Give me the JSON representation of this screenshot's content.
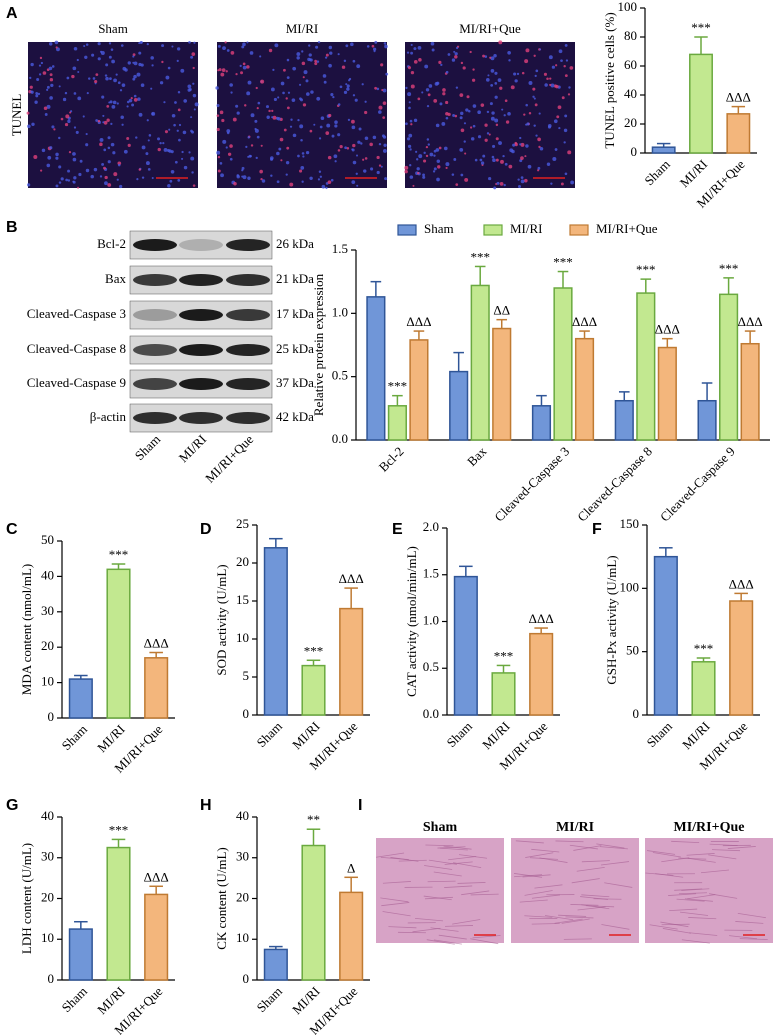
{
  "panel_labels": [
    "A",
    "B",
    "C",
    "D",
    "E",
    "F",
    "G",
    "H",
    "I"
  ],
  "tunel": {
    "row_label": "TUNEL",
    "groups": [
      "Sham",
      "MI/RI",
      "MI/RI+Que"
    ]
  },
  "western_blot": {
    "proteins": [
      "Bcl-2",
      "Bax",
      "Cleaved-Caspase 3",
      "Cleaved-Caspase 8",
      "Cleaved-Caspase 9",
      "β-actin"
    ],
    "sizes": [
      "26 kDa",
      "21 kDa",
      "17 kDa",
      "25 kDa",
      "37 kDa",
      "42 kDa"
    ],
    "groups": [
      "Sham",
      "MI/RI",
      "MI/RI+Que"
    ]
  },
  "he_stain": {
    "groups": [
      "Sham",
      "MI/RI",
      "MI/RI+Que"
    ]
  },
  "chart_data": [
    {
      "type": "bar",
      "ylabel": "TUNEL positive cells (%)",
      "categories": [
        "Sham",
        "MI/RI",
        "MI/RI+Que"
      ],
      "values": [
        4,
        68,
        27
      ],
      "errors": [
        2.5,
        12,
        5
      ],
      "annotations": [
        null,
        "***",
        "ΔΔΔ"
      ],
      "colors": [
        "#7096d8",
        "#c2e890",
        "#f3b67c"
      ],
      "edge_colors": [
        "#2f5597",
        "#6aa93f",
        "#bf7a32"
      ],
      "ylim": [
        0,
        100
      ],
      "yticks": [
        0,
        20,
        40,
        60,
        80,
        100
      ]
    },
    {
      "type": "grouped_bar",
      "ylabel": "Relative protein expression",
      "categories": [
        "Bcl-2",
        "Bax",
        "Cleaved-Caspase 3",
        "Cleaved-Caspase 8",
        "Cleaved-Caspase 9"
      ],
      "series": [
        {
          "name": "Sham",
          "color": "#7096d8",
          "edge_color": "#2f5597",
          "values": [
            1.13,
            0.54,
            0.27,
            0.31,
            0.31
          ],
          "errors": [
            0.12,
            0.15,
            0.08,
            0.07,
            0.14
          ],
          "annotations": [
            null,
            null,
            null,
            null,
            null
          ]
        },
        {
          "name": "MI/RI",
          "color": "#c2e890",
          "edge_color": "#6aa93f",
          "values": [
            0.27,
            1.22,
            1.2,
            1.16,
            1.15
          ],
          "errors": [
            0.08,
            0.15,
            0.13,
            0.11,
            0.13
          ],
          "annotations": [
            "***",
            "***",
            "***",
            "***",
            "***"
          ]
        },
        {
          "name": "MI/RI+Que",
          "color": "#f3b67c",
          "edge_color": "#bf7a32",
          "values": [
            0.79,
            0.88,
            0.8,
            0.73,
            0.76
          ],
          "errors": [
            0.07,
            0.07,
            0.06,
            0.07,
            0.1
          ],
          "annotations": [
            "ΔΔΔ",
            "ΔΔ",
            "ΔΔΔ",
            "ΔΔΔ",
            "ΔΔΔ"
          ]
        }
      ],
      "legend": "top",
      "ylim": [
        0,
        1.5
      ],
      "yticks": [
        {
          "value": 0,
          "label": "0.0"
        },
        0.5,
        {
          "value": 1,
          "label": "1.0"
        },
        1.5
      ]
    },
    {
      "type": "bar",
      "ylabel": "MDA content (nmol/mL)",
      "categories": [
        "Sham",
        "MI/RI",
        "MI/RI+Que"
      ],
      "values": [
        11,
        42,
        17
      ],
      "errors": [
        1,
        1.5,
        1.5
      ],
      "annotations": [
        null,
        "***",
        "ΔΔΔ"
      ],
      "colors": [
        "#7096d8",
        "#c2e890",
        "#f3b67c"
      ],
      "edge_colors": [
        "#2f5597",
        "#6aa93f",
        "#bf7a32"
      ],
      "ylim": [
        0,
        50
      ],
      "yticks": [
        0,
        10,
        20,
        30,
        40,
        50
      ]
    },
    {
      "type": "bar",
      "ylabel": "SOD activity (U/mL)",
      "categories": [
        "Sham",
        "MI/RI",
        "MI/RI+Que"
      ],
      "values": [
        22,
        6.5,
        14
      ],
      "errors": [
        1.2,
        0.7,
        2.7
      ],
      "annotations": [
        null,
        "***",
        "ΔΔΔ"
      ],
      "colors": [
        "#7096d8",
        "#c2e890",
        "#f3b67c"
      ],
      "edge_colors": [
        "#2f5597",
        "#6aa93f",
        "#bf7a32"
      ],
      "ylim": [
        0,
        25
      ],
      "yticks": [
        0,
        5,
        10,
        15,
        20,
        25
      ]
    },
    {
      "type": "bar",
      "ylabel": "CAT activity (nmol/min/mL)",
      "categories": [
        "Sham",
        "MI/RI",
        "MI/RI+Que"
      ],
      "values": [
        1.48,
        0.45,
        0.87
      ],
      "errors": [
        0.11,
        0.08,
        0.06
      ],
      "annotations": [
        null,
        "***",
        "ΔΔΔ"
      ],
      "colors": [
        "#7096d8",
        "#c2e890",
        "#f3b67c"
      ],
      "edge_colors": [
        "#2f5597",
        "#6aa93f",
        "#bf7a32"
      ],
      "ylim": [
        0,
        2
      ],
      "yticks": [
        {
          "value": 0,
          "label": "0.0"
        },
        0.5,
        {
          "value": 1,
          "label": "1.0"
        },
        1.5,
        {
          "value": 2,
          "label": "2.0"
        }
      ]
    },
    {
      "type": "bar",
      "ylabel": "GSH-Px activity (U/mL)",
      "categories": [
        "Sham",
        "MI/RI",
        "MI/RI+Que"
      ],
      "values": [
        125,
        42,
        90
      ],
      "errors": [
        7,
        3,
        6
      ],
      "annotations": [
        null,
        "***",
        "ΔΔΔ"
      ],
      "colors": [
        "#7096d8",
        "#c2e890",
        "#f3b67c"
      ],
      "edge_colors": [
        "#2f5597",
        "#6aa93f",
        "#bf7a32"
      ],
      "ylim": [
        0,
        150
      ],
      "yticks": [
        0,
        50,
        100,
        150
      ]
    },
    {
      "type": "bar",
      "ylabel": "LDH content (U/mL)",
      "categories": [
        "Sham",
        "MI/RI",
        "MI/RI+Que"
      ],
      "values": [
        12.5,
        32.5,
        21
      ],
      "errors": [
        1.8,
        2,
        2
      ],
      "annotations": [
        null,
        "***",
        "ΔΔΔ"
      ],
      "colors": [
        "#7096d8",
        "#c2e890",
        "#f3b67c"
      ],
      "edge_colors": [
        "#2f5597",
        "#6aa93f",
        "#bf7a32"
      ],
      "ylim": [
        0,
        40
      ],
      "yticks": [
        0,
        10,
        20,
        30,
        40
      ]
    },
    {
      "type": "bar",
      "ylabel": "CK content (U/mL)",
      "categories": [
        "Sham",
        "MI/RI",
        "MI/RI+Que"
      ],
      "values": [
        7.5,
        33,
        21.5
      ],
      "errors": [
        0.7,
        4,
        3.7
      ],
      "annotations": [
        null,
        "**",
        "Δ"
      ],
      "colors": [
        "#7096d8",
        "#c2e890",
        "#f3b67c"
      ],
      "edge_colors": [
        "#2f5597",
        "#6aa93f",
        "#bf7a32"
      ],
      "ylim": [
        0,
        40
      ],
      "yticks": [
        0,
        10,
        20,
        30,
        40
      ]
    }
  ]
}
